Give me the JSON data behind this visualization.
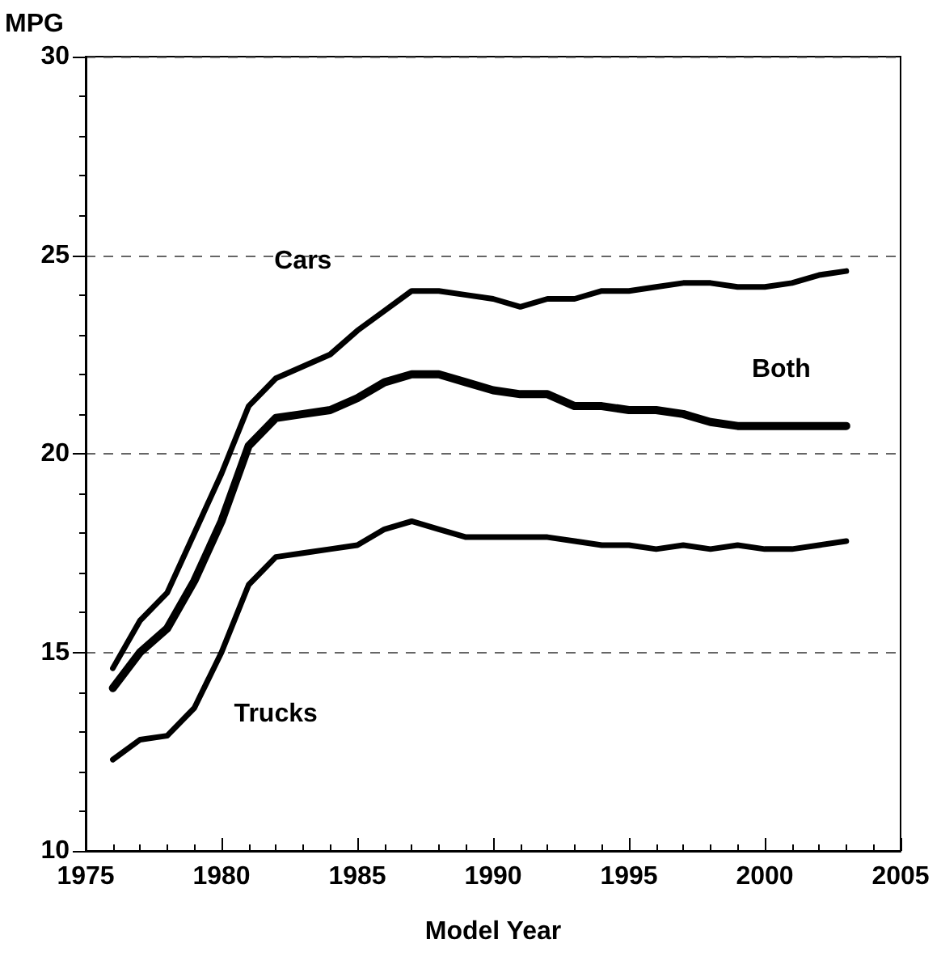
{
  "chart_data": {
    "type": "line",
    "xlabel": "Model Year",
    "ylabel": "MPG",
    "x": [
      1976,
      1977,
      1978,
      1979,
      1980,
      1981,
      1982,
      1983,
      1984,
      1985,
      1986,
      1987,
      1988,
      1989,
      1990,
      1991,
      1992,
      1993,
      1994,
      1995,
      1996,
      1997,
      1998,
      1999,
      2000,
      2001,
      2002,
      2003
    ],
    "series": [
      {
        "name": "Cars",
        "color": "#000000",
        "values": [
          14.6,
          15.8,
          16.5,
          18.0,
          19.5,
          21.2,
          21.9,
          22.2,
          22.5,
          23.1,
          23.6,
          24.1,
          24.1,
          24.0,
          23.9,
          23.7,
          23.9,
          23.9,
          24.1,
          24.1,
          24.2,
          24.3,
          24.3,
          24.2,
          24.2,
          24.3,
          24.5,
          24.6
        ]
      },
      {
        "name": "Both",
        "color": "#000000",
        "values": [
          14.1,
          15.0,
          15.6,
          16.8,
          18.3,
          20.2,
          20.9,
          21.0,
          21.1,
          21.4,
          21.8,
          22.0,
          22.0,
          21.8,
          21.6,
          21.5,
          21.5,
          21.2,
          21.2,
          21.1,
          21.1,
          21.0,
          20.8,
          20.7,
          20.7,
          20.7,
          20.7,
          20.7
        ]
      },
      {
        "name": "Trucks",
        "color": "#000000",
        "values": [
          12.3,
          12.8,
          12.9,
          13.6,
          15.0,
          16.7,
          17.4,
          17.5,
          17.6,
          17.7,
          18.1,
          18.3,
          18.1,
          17.9,
          17.9,
          17.9,
          17.9,
          17.8,
          17.7,
          17.7,
          17.6,
          17.7,
          17.6,
          17.7,
          17.6,
          17.6,
          17.7,
          17.8
        ]
      }
    ],
    "xlim": [
      1975,
      2005
    ],
    "xticks": [
      1975,
      1980,
      1985,
      1990,
      1995,
      2000,
      2005
    ],
    "ylim": [
      10,
      30
    ],
    "yticks": [
      10,
      15,
      20,
      25,
      30
    ],
    "grid": "y",
    "legend": false,
    "marker": "none",
    "line_style": "solid"
  }
}
